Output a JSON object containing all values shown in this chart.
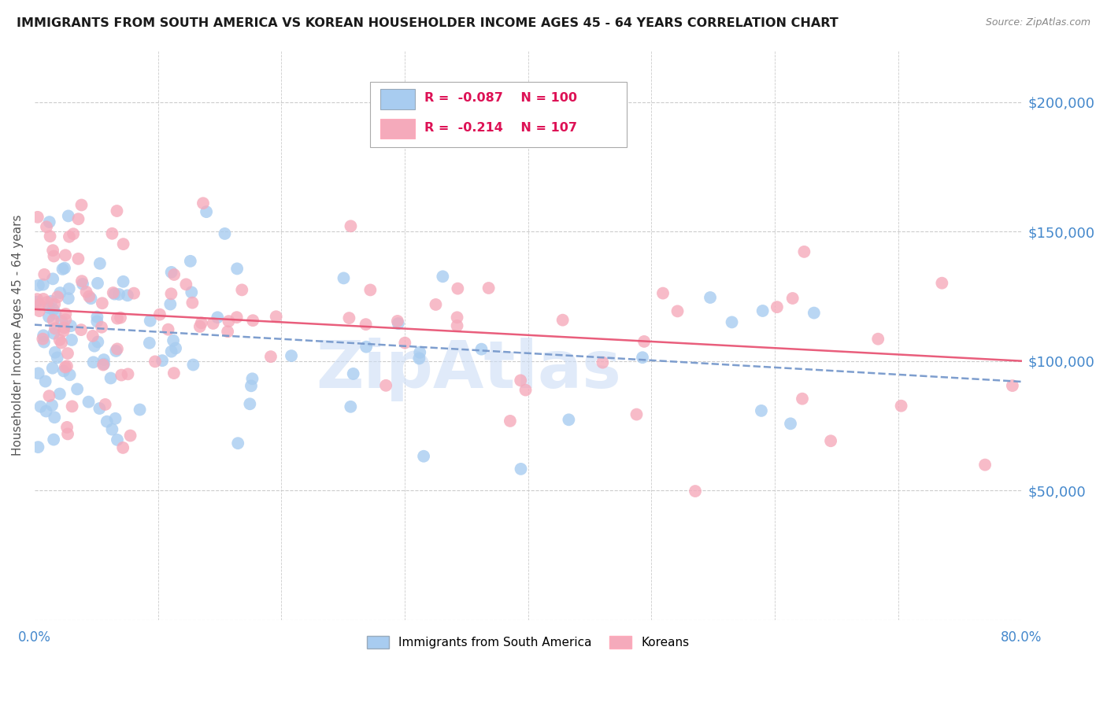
{
  "title": "IMMIGRANTS FROM SOUTH AMERICA VS KOREAN HOUSEHOLDER INCOME AGES 45 - 64 YEARS CORRELATION CHART",
  "source": "Source: ZipAtlas.com",
  "ylabel": "Householder Income Ages 45 - 64 years",
  "xmin": 0.0,
  "xmax": 0.8,
  "ymin": 0,
  "ymax": 220000,
  "series1_label": "Immigrants from South America",
  "series1_R": "-0.087",
  "series1_N": "100",
  "series1_color": "#A8CCF0",
  "series1_line_color": "#7799CC",
  "series2_label": "Koreans",
  "series2_R": "-0.214",
  "series2_N": "107",
  "series2_color": "#F5AABB",
  "series2_line_color": "#E85575",
  "watermark": "ZipAtlas",
  "watermark_color": "#CCDDF5",
  "title_color": "#1a1a1a",
  "source_color": "#888888",
  "axis_label_color": "#4488CC",
  "ylabel_color": "#555555",
  "grid_color": "#CCCCCC",
  "background_color": "#FFFFFF",
  "legend_box_color": "#DDDDDD",
  "legend_text_color": "#DD1155",
  "ytick_vals": [
    0,
    50000,
    100000,
    150000,
    200000
  ],
  "ytick_labels": [
    "",
    "$50,000",
    "$100,000",
    "$150,000",
    "$200,000"
  ],
  "blue_trend_x": [
    0.0,
    0.8
  ],
  "blue_trend_y": [
    114000,
    92000
  ],
  "pink_trend_x": [
    0.0,
    0.8
  ],
  "pink_trend_y": [
    120000,
    100000
  ]
}
